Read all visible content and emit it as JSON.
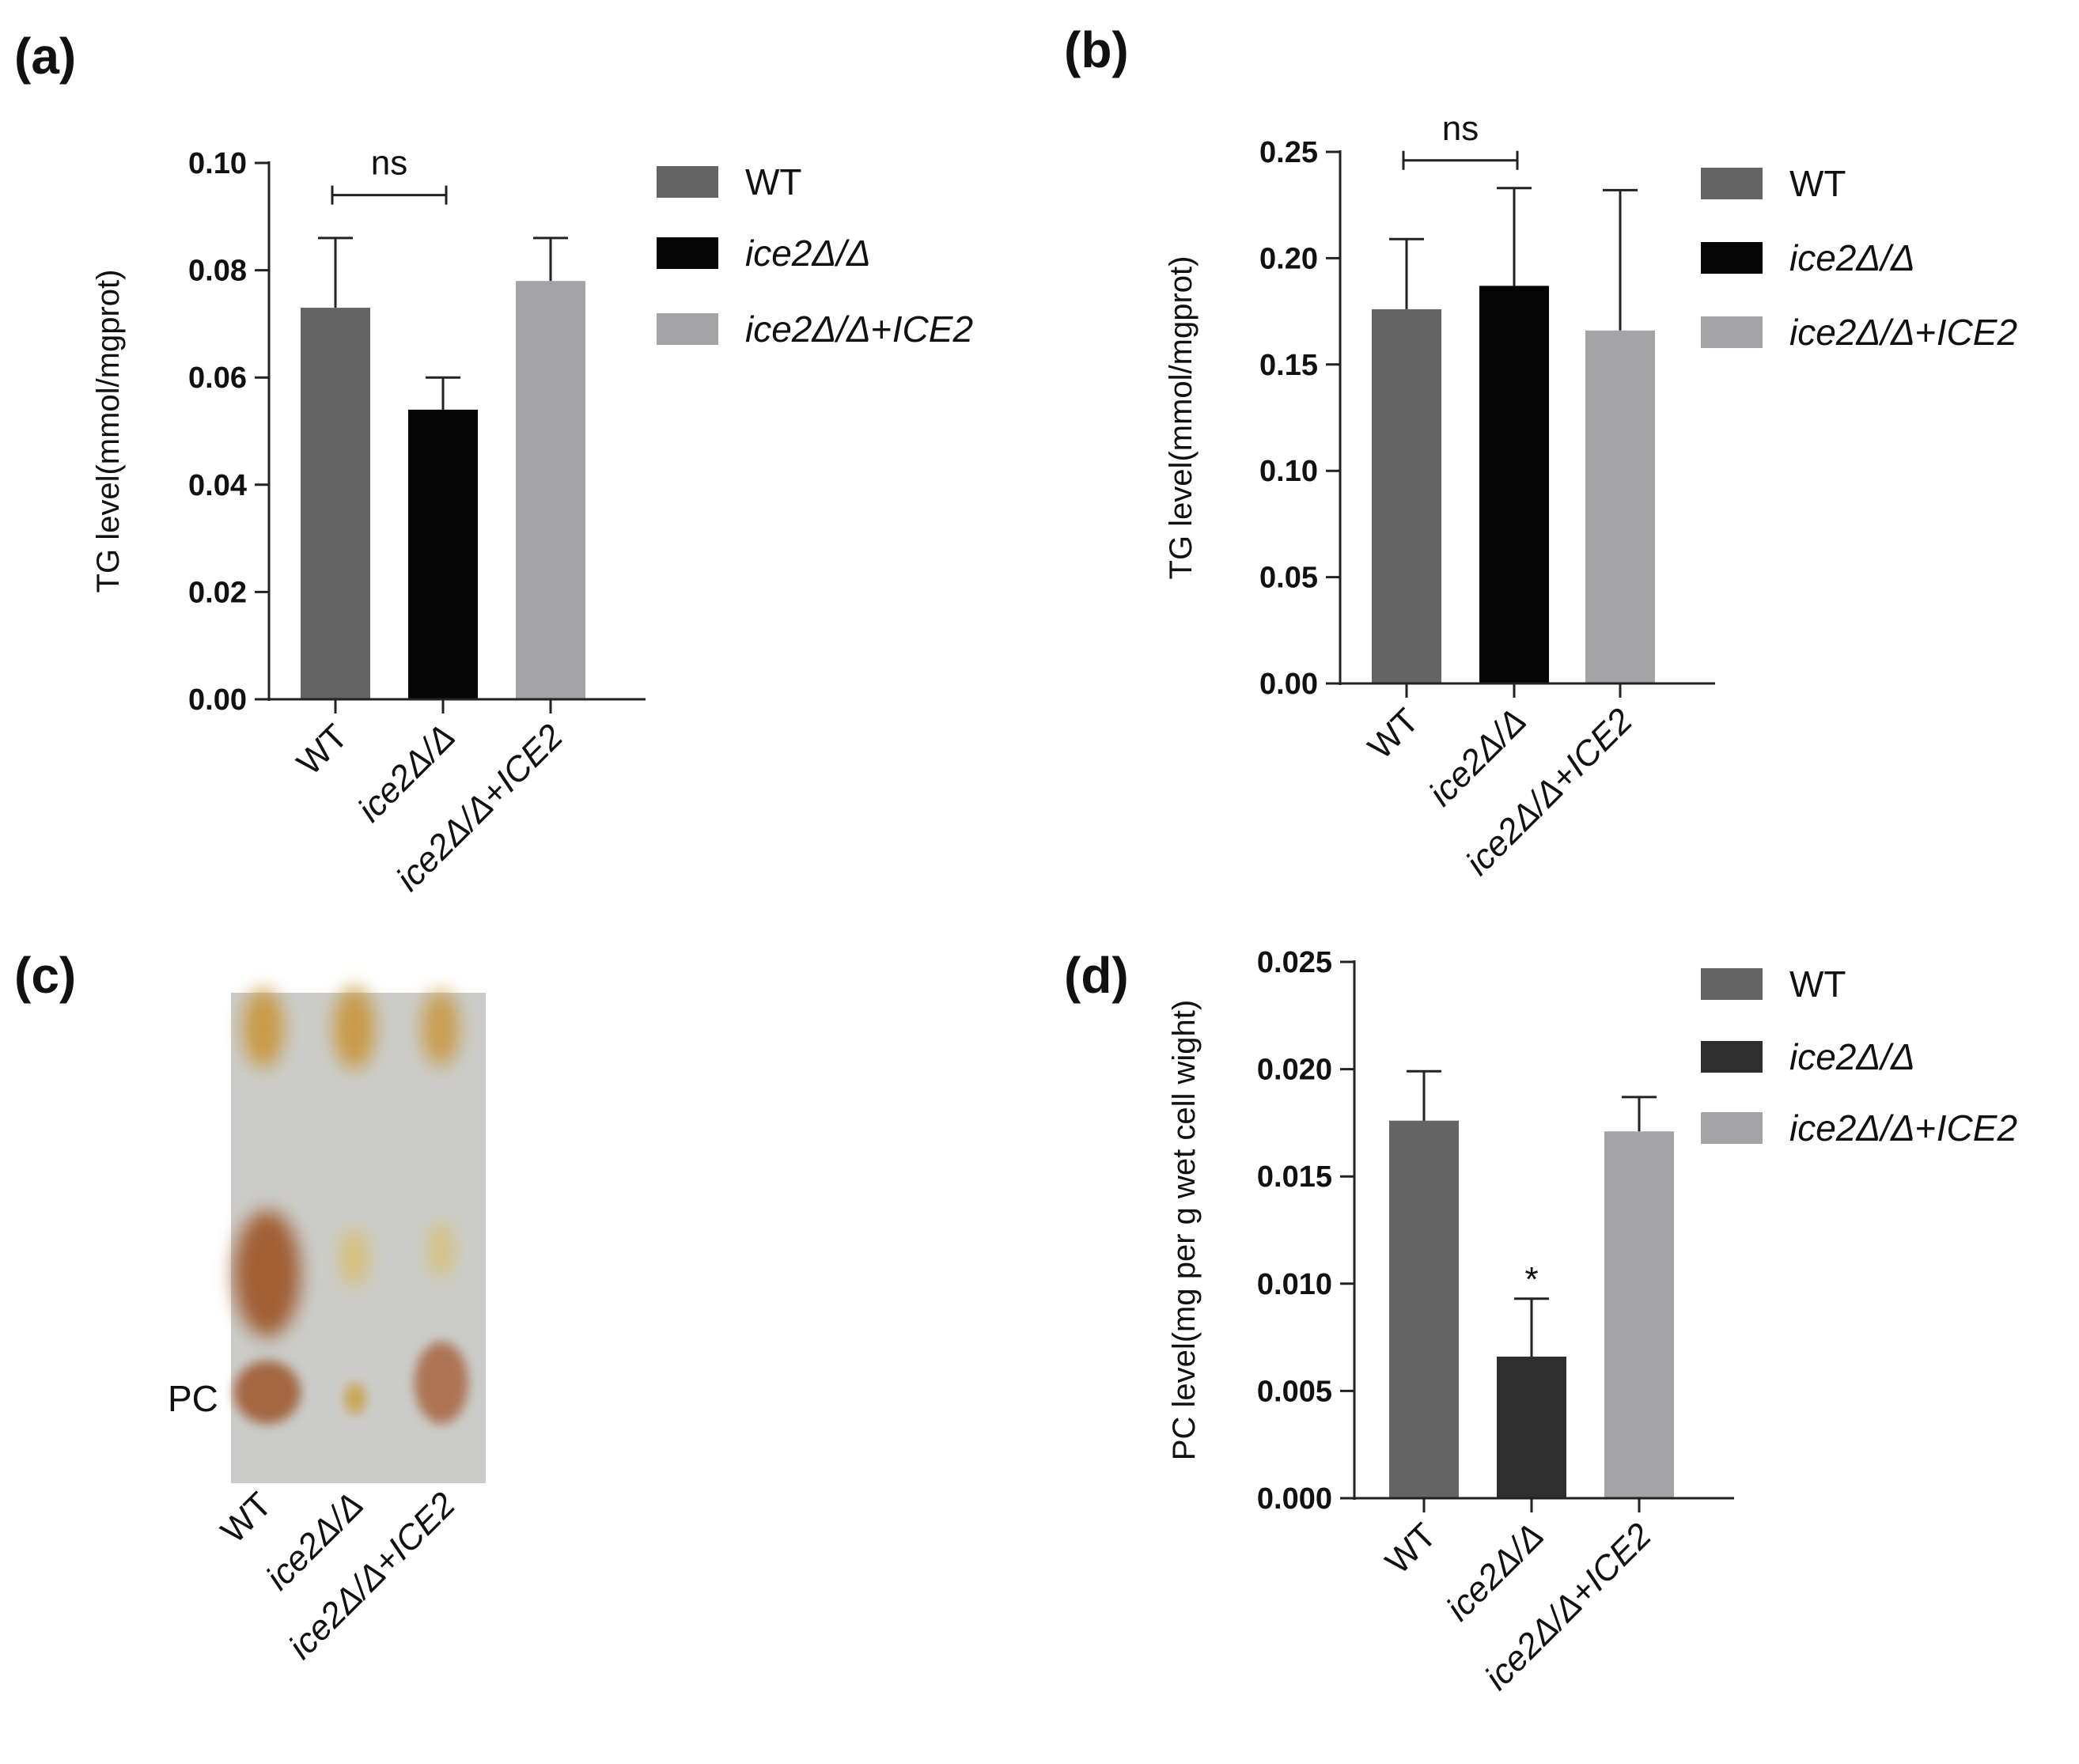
{
  "figure": {
    "panel_a": "(a)",
    "panel_b": "(b)",
    "panel_c": "(c)",
    "panel_d": "(d)"
  },
  "colors": {
    "wt": "#646464",
    "ice2": "#050505",
    "ice2_dark": "#2e2e2e",
    "complement": "#a4a4a6",
    "axis": "#222222"
  },
  "chart_data": [
    {
      "id": "a",
      "type": "bar",
      "title": "",
      "xlabel": "",
      "ylabel": "TG level(mmol/mgprot)",
      "categories": [
        "WT",
        "ice2Δ/Δ",
        "ice2Δ/Δ+ICE2"
      ],
      "values": [
        0.073,
        0.054,
        0.078
      ],
      "errors": [
        0.013,
        0.006,
        0.008
      ],
      "ylim": [
        0,
        0.1
      ],
      "yticks": [
        0.0,
        0.02,
        0.04,
        0.06,
        0.08,
        0.1
      ],
      "ytick_labels": [
        "0.00",
        "0.02",
        "0.04",
        "0.06",
        "0.08",
        "0.10"
      ],
      "legend": [
        "WT",
        "ice2Δ/Δ",
        "ice2Δ/Δ+ICE2"
      ],
      "legend_position": "right",
      "bracket": {
        "from": 0,
        "to": 1,
        "label": "ns",
        "y": 0.094
      },
      "grid": false
    },
    {
      "id": "b",
      "type": "bar",
      "title": "",
      "xlabel": "",
      "ylabel": "TG level(mmol/mgprot)",
      "categories": [
        "WT",
        "ice2Δ/Δ",
        "ice2Δ/Δ+ICE2"
      ],
      "values": [
        0.176,
        0.187,
        0.166
      ],
      "errors": [
        0.033,
        0.046,
        0.066
      ],
      "ylim": [
        0,
        0.25
      ],
      "yticks": [
        0.0,
        0.05,
        0.1,
        0.15,
        0.2,
        0.25
      ],
      "ytick_labels": [
        "0.00",
        "0.05",
        "0.10",
        "0.15",
        "0.20",
        "0.25"
      ],
      "legend": [
        "WT",
        "ice2Δ/Δ",
        "ice2Δ/Δ+ICE2"
      ],
      "legend_position": "right",
      "bracket": {
        "from": 0,
        "to": 1,
        "label": "ns",
        "y": 0.246
      },
      "grid": false
    },
    {
      "id": "d",
      "type": "bar",
      "title": "",
      "xlabel": "",
      "ylabel": "PC level(mg per g wet cell wight)",
      "categories": [
        "WT",
        "ice2Δ/Δ",
        "ice2Δ/Δ+ICE2"
      ],
      "values": [
        0.0176,
        0.0066,
        0.0171
      ],
      "errors": [
        0.0023,
        0.0027,
        0.0016
      ],
      "ylim": [
        0,
        0.025
      ],
      "yticks": [
        0.0,
        0.005,
        0.01,
        0.015,
        0.02,
        0.025
      ],
      "ytick_labels": [
        "0.000",
        "0.005",
        "0.010",
        "0.015",
        "0.020",
        "0.025"
      ],
      "legend": [
        "WT",
        "ice2Δ/Δ",
        "ice2Δ/Δ+ICE2"
      ],
      "legend_position": "right",
      "significance": [
        {
          "index": 1,
          "label": "*"
        }
      ],
      "grid": false
    }
  ],
  "tlc": {
    "pc_label": "PC",
    "lanes": [
      "WT",
      "ice2Δ/Δ",
      "ice2Δ/Δ+ICE2"
    ],
    "background_color": "#c4c6c3",
    "band_color_dark": "#a5603a",
    "band_color_light": "#d7b45a"
  }
}
